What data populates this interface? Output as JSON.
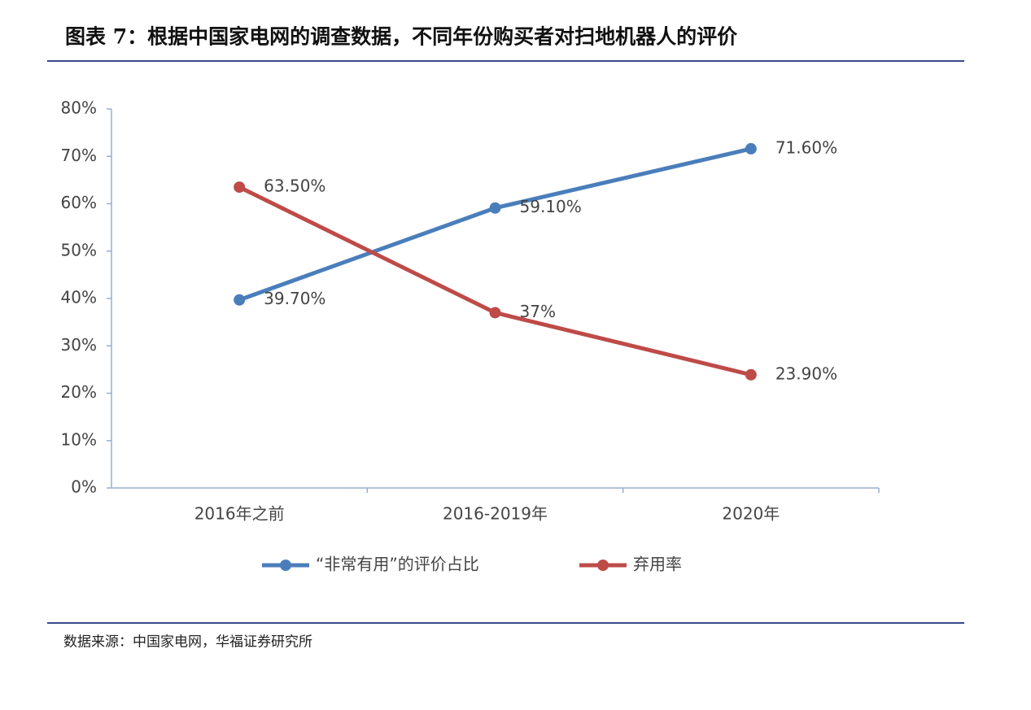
{
  "chart_data": {
    "type": "line",
    "title": "图表 7：根据中国家电网的调查数据，不同年份购买者对扫地机器人的评价",
    "categories": [
      "2016年之前",
      "2016-2019年",
      "2020年"
    ],
    "series": [
      {
        "name": "“非常有用”的评价占比",
        "color": "#4a7ebb",
        "values": [
          39.7,
          59.1,
          71.6
        ],
        "value_labels": [
          "39.70%",
          "59.10%",
          "71.60%"
        ]
      },
      {
        "name": "弃用率",
        "color": "#be4b48",
        "values": [
          63.5,
          37,
          23.9
        ],
        "value_labels": [
          "63.50%",
          "37%",
          "23.90%"
        ]
      }
    ],
    "ylim": [
      0,
      80
    ],
    "yticks": [
      {
        "value": 0,
        "label": "0%"
      },
      {
        "value": 10,
        "label": "10%"
      },
      {
        "value": 20,
        "label": "20%"
      },
      {
        "value": 30,
        "label": "30%"
      },
      {
        "value": 40,
        "label": "40%"
      },
      {
        "value": 50,
        "label": "50%"
      },
      {
        "value": 60,
        "label": "60%"
      },
      {
        "value": 70,
        "label": "70%"
      },
      {
        "value": 80,
        "label": "80%"
      }
    ],
    "grid": false,
    "legend": "bottom"
  },
  "source": "数据来源：中国家电网，华福证券研究所"
}
